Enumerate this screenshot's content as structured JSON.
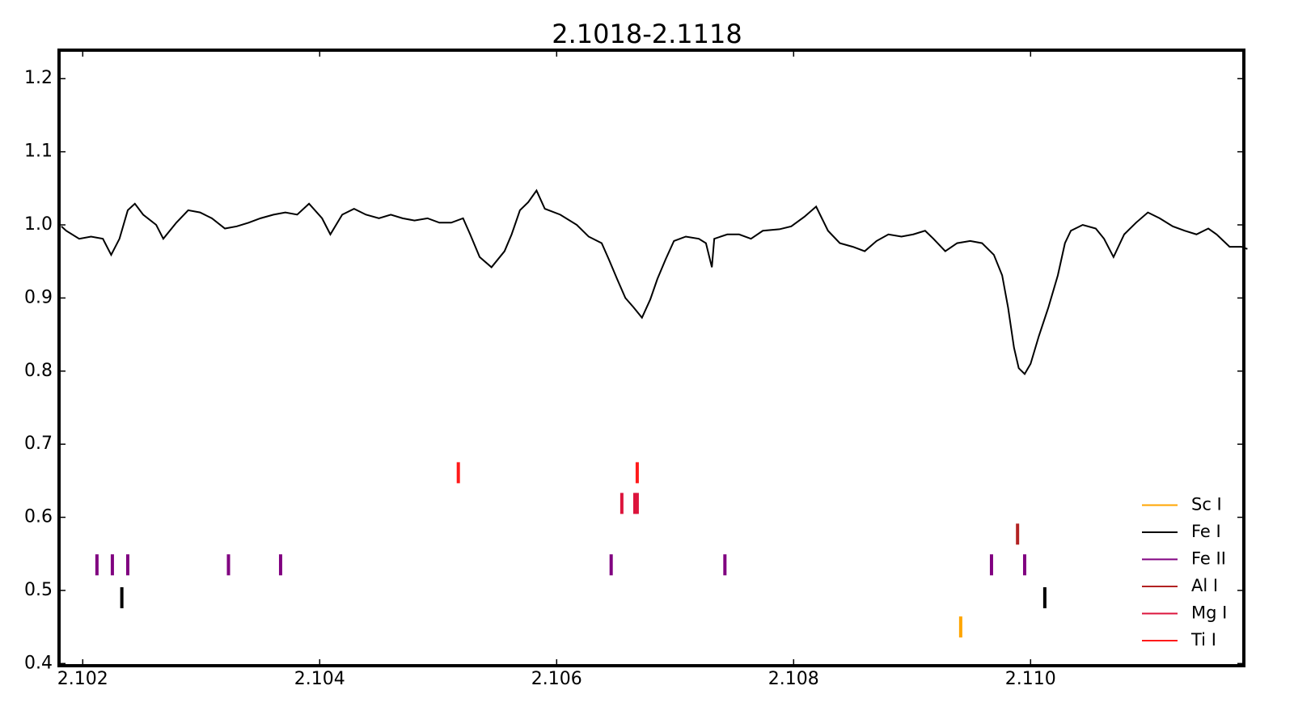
{
  "chart_data": {
    "type": "line",
    "title": "2.1018-2.1118",
    "color": "#000000",
    "x": [
      2.10182,
      2.10186,
      2.10197,
      2.10207,
      2.10217,
      2.10224,
      2.10231,
      2.10238,
      2.10244,
      2.10251,
      2.10262,
      2.10268,
      2.10279,
      2.10289,
      2.10299,
      2.10309,
      2.1032,
      2.1033,
      2.1034,
      2.1035,
      2.10361,
      2.10371,
      2.10381,
      2.10391,
      2.10402,
      2.10409,
      2.10419,
      2.10429,
      2.10439,
      2.1045,
      2.1046,
      2.1047,
      2.1048,
      2.10491,
      2.10501,
      2.10511,
      2.10521,
      2.10527,
      2.10535,
      2.10545,
      2.10556,
      2.10562,
      2.10569,
      2.10576,
      2.10583,
      2.1059,
      2.10603,
      2.10617,
      2.10627,
      2.10638,
      2.10644,
      2.10651,
      2.10658,
      2.10665,
      2.10672,
      2.10679,
      2.10685,
      2.10692,
      2.10699,
      2.10709,
      2.1072,
      2.10726,
      2.10731,
      2.10733,
      2.10744,
      2.10754,
      2.10764,
      2.10774,
      2.10788,
      2.10798,
      2.10809,
      2.10819,
      2.10829,
      2.10839,
      2.1085,
      2.1086,
      2.1087,
      2.1088,
      2.10891,
      2.10901,
      2.10911,
      2.10918,
      2.10928,
      2.10938,
      2.10949,
      2.10959,
      2.10969,
      2.10976,
      2.10981,
      2.10986,
      2.1099,
      2.10995,
      2.11,
      2.11007,
      2.11015,
      2.11023,
      2.11029,
      2.11034,
      2.11044,
      2.11055,
      2.11062,
      2.1107,
      2.11079,
      2.11089,
      2.11099,
      2.11109,
      2.1112,
      2.1113,
      2.1114,
      2.1115,
      2.11157,
      2.11168,
      2.11178,
      2.11183
    ],
    "values": [
      0.998,
      0.992,
      0.981,
      0.984,
      0.981,
      0.959,
      0.981,
      1.02,
      1.029,
      1.014,
      1.0,
      0.981,
      1.003,
      1.02,
      1.017,
      1.009,
      0.995,
      0.998,
      1.003,
      1.009,
      1.014,
      1.017,
      1.014,
      1.029,
      1.009,
      0.987,
      1.014,
      1.022,
      1.014,
      1.009,
      1.014,
      1.009,
      1.006,
      1.009,
      1.003,
      1.003,
      1.009,
      0.987,
      0.956,
      0.942,
      0.964,
      0.987,
      1.02,
      1.031,
      1.047,
      1.022,
      1.014,
      1.0,
      0.984,
      0.975,
      0.953,
      0.926,
      0.9,
      0.887,
      0.873,
      0.898,
      0.926,
      0.953,
      0.978,
      0.984,
      0.981,
      0.975,
      0.942,
      0.981,
      0.987,
      0.987,
      0.981,
      0.992,
      0.994,
      0.998,
      1.011,
      1.025,
      0.992,
      0.975,
      0.97,
      0.964,
      0.978,
      0.987,
      0.984,
      0.987,
      0.992,
      0.981,
      0.964,
      0.975,
      0.978,
      0.975,
      0.959,
      0.931,
      0.887,
      0.832,
      0.804,
      0.796,
      0.81,
      0.848,
      0.887,
      0.931,
      0.975,
      0.992,
      1.0,
      0.995,
      0.981,
      0.956,
      0.987,
      1.003,
      1.017,
      1.009,
      0.998,
      0.992,
      0.987,
      0.995,
      0.987,
      0.97,
      0.97,
      0.967
    ],
    "series": [
      {
        "name": "Sc I",
        "color": "#ffa500",
        "x": [
          2.10941
        ],
        "values": [
          0.45
        ]
      },
      {
        "name": "Fe I",
        "color": "#000000",
        "x": [
          2.10233,
          2.11012
        ],
        "values": [
          0.49,
          0.49
        ]
      },
      {
        "name": "Fe II",
        "color": "#800080",
        "x": [
          2.10212,
          2.10225,
          2.10238,
          2.10323,
          2.10367,
          2.10646,
          2.10742,
          2.10967,
          2.10995
        ],
        "values": [
          0.535,
          0.535,
          0.535,
          0.535,
          0.535,
          0.535,
          0.535,
          0.535,
          0.535
        ]
      },
      {
        "name": "Al I",
        "color": "#b22222",
        "x": [
          2.10989
        ],
        "values": [
          0.577
        ]
      },
      {
        "name": "Mg I",
        "color": "#dc143c",
        "x": [
          2.10655,
          2.10666,
          2.10668
        ],
        "values": [
          0.619,
          0.619,
          0.619
        ]
      },
      {
        "name": "Ti I",
        "color": "#ff1a1a",
        "x": [
          2.10517,
          2.10668
        ],
        "values": [
          0.661,
          0.661
        ]
      }
    ],
    "xlim": [
      2.1018,
      2.1118
    ],
    "ylim": [
      0.397,
      1.239
    ],
    "xticks": [
      2.102,
      2.104,
      2.106,
      2.108,
      {
        "value": 2.11,
        "label": "2.110"
      }
    ],
    "yticks": [
      0.4,
      0.5,
      0.6,
      0.7,
      0.8,
      0.9,
      {
        "value": 1,
        "label": "1.0"
      },
      1.1,
      1.2
    ],
    "legend": "lower right"
  }
}
